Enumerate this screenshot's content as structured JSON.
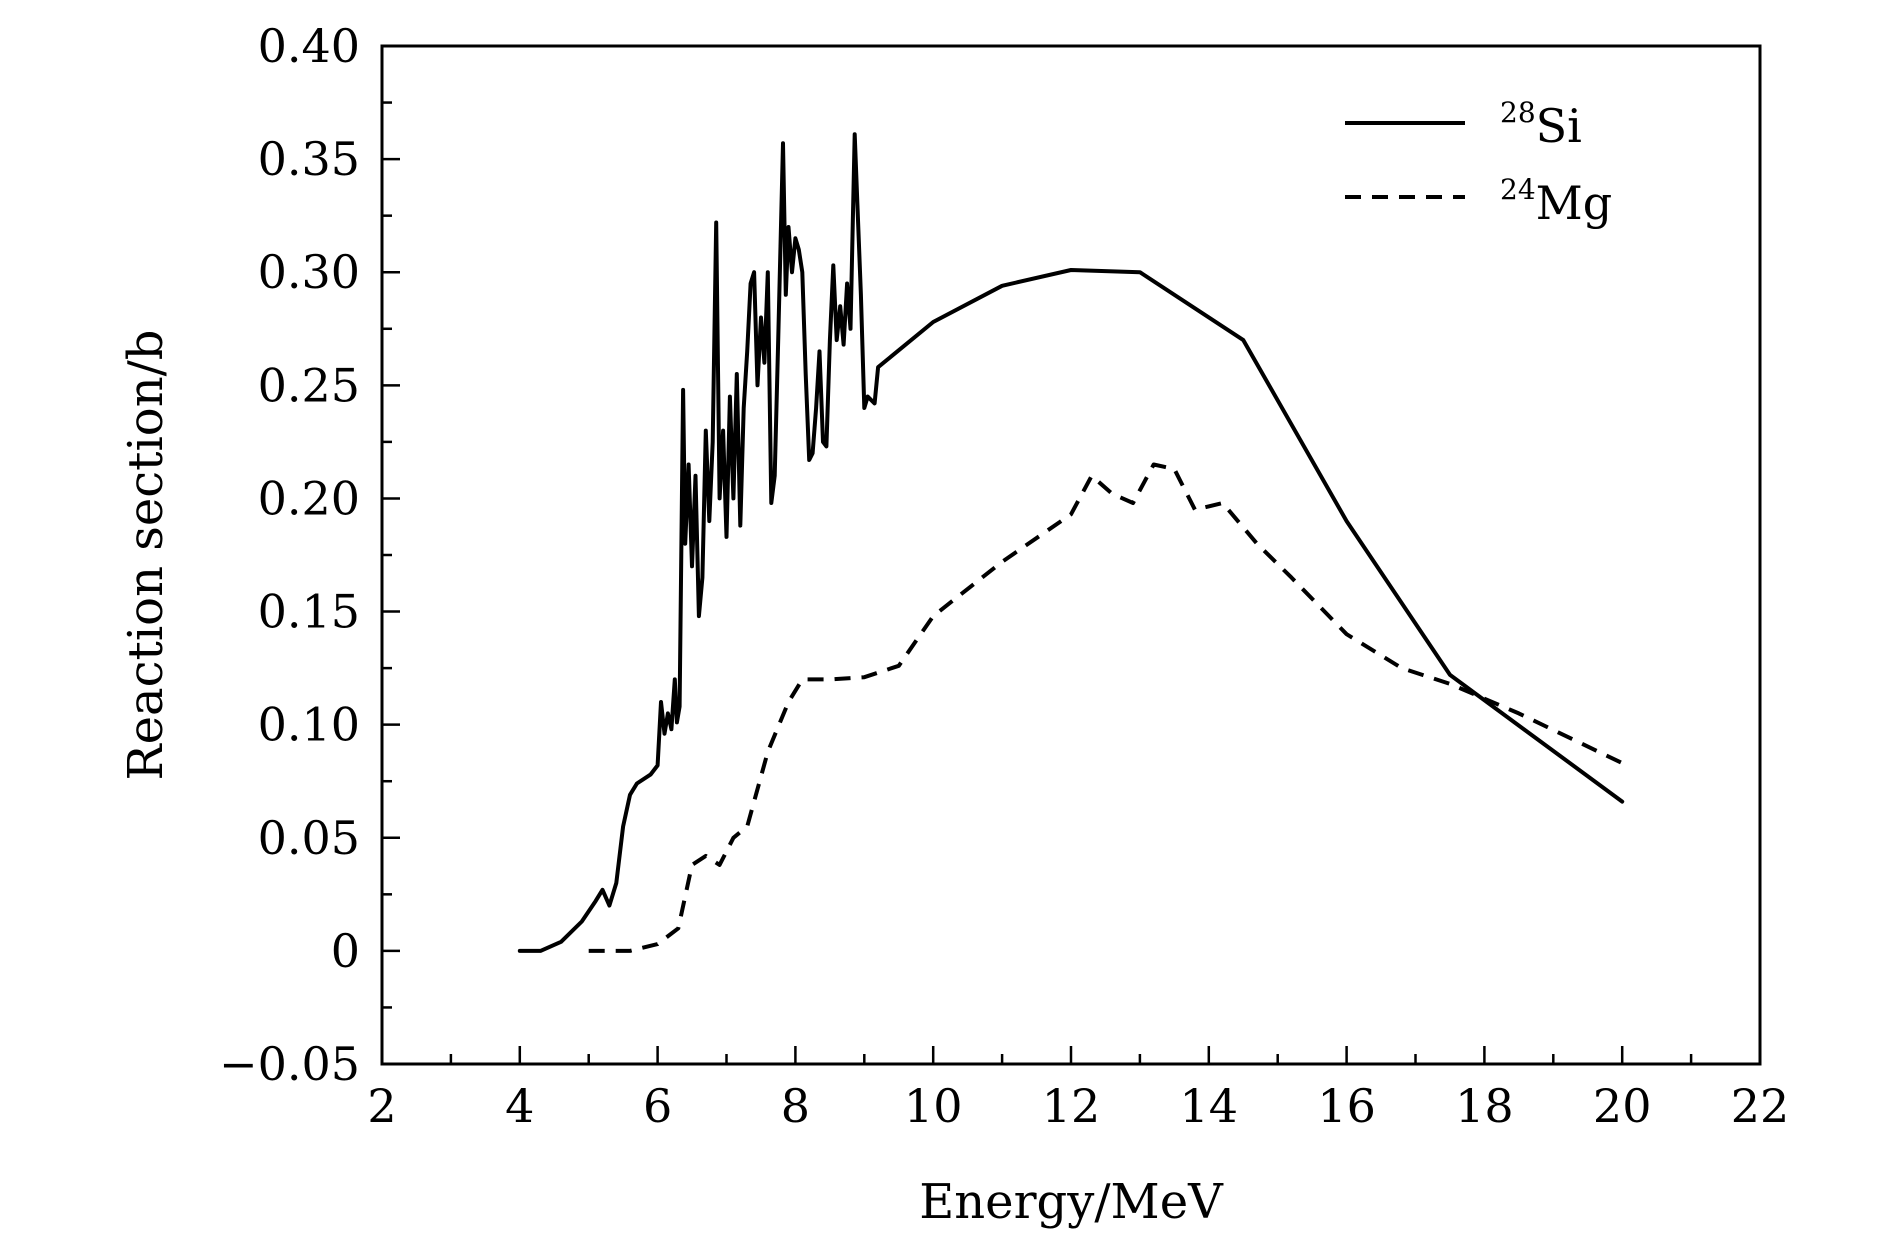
{
  "chart_data": {
    "type": "line",
    "title": "",
    "xlabel": "Energy/MeV",
    "ylabel": "Reaction section/b",
    "xlim": [
      2,
      22
    ],
    "ylim": [
      -0.05,
      0.4
    ],
    "xticks": [
      2,
      4,
      6,
      8,
      10,
      12,
      14,
      16,
      18,
      20,
      22
    ],
    "xtick_labels": [
      "2",
      "4",
      "6",
      "8",
      "10",
      "12",
      "14",
      "16",
      "18",
      "20",
      "22"
    ],
    "yticks": [
      -0.05,
      0,
      0.05,
      0.1,
      0.15,
      0.2,
      0.25,
      0.3,
      0.35,
      0.4
    ],
    "ytick_labels": [
      "−0.05",
      "0",
      "0.05",
      "0.10",
      "0.15",
      "0.20",
      "0.25",
      "0.30",
      "0.35",
      "0.40"
    ],
    "grid": false,
    "legend_position": "top-right",
    "series": [
      {
        "name": "28Si",
        "legend_sup": "28",
        "legend_base": "Si",
        "style": "solid",
        "color": "#000000",
        "points": [
          [
            4.0,
            0.0
          ],
          [
            4.3,
            0.0
          ],
          [
            4.6,
            0.004
          ],
          [
            4.9,
            0.013
          ],
          [
            5.1,
            0.022
          ],
          [
            5.2,
            0.027
          ],
          [
            5.3,
            0.02
          ],
          [
            5.4,
            0.03
          ],
          [
            5.5,
            0.055
          ],
          [
            5.6,
            0.069
          ],
          [
            5.7,
            0.074
          ],
          [
            5.9,
            0.078
          ],
          [
            6.0,
            0.082
          ],
          [
            6.05,
            0.11
          ],
          [
            6.1,
            0.096
          ],
          [
            6.15,
            0.105
          ],
          [
            6.2,
            0.098
          ],
          [
            6.25,
            0.12
          ],
          [
            6.28,
            0.101
          ],
          [
            6.32,
            0.108
          ],
          [
            6.37,
            0.248
          ],
          [
            6.4,
            0.18
          ],
          [
            6.45,
            0.215
          ],
          [
            6.5,
            0.17
          ],
          [
            6.55,
            0.21
          ],
          [
            6.6,
            0.148
          ],
          [
            6.65,
            0.165
          ],
          [
            6.7,
            0.23
          ],
          [
            6.75,
            0.19
          ],
          [
            6.8,
            0.225
          ],
          [
            6.85,
            0.322
          ],
          [
            6.9,
            0.2
          ],
          [
            6.95,
            0.23
          ],
          [
            7.0,
            0.183
          ],
          [
            7.05,
            0.245
          ],
          [
            7.1,
            0.2
          ],
          [
            7.15,
            0.255
          ],
          [
            7.2,
            0.188
          ],
          [
            7.25,
            0.24
          ],
          [
            7.3,
            0.265
          ],
          [
            7.35,
            0.295
          ],
          [
            7.4,
            0.3
          ],
          [
            7.45,
            0.25
          ],
          [
            7.5,
            0.28
          ],
          [
            7.55,
            0.26
          ],
          [
            7.6,
            0.3
          ],
          [
            7.65,
            0.198
          ],
          [
            7.7,
            0.21
          ],
          [
            7.75,
            0.27
          ],
          [
            7.82,
            0.357
          ],
          [
            7.86,
            0.29
          ],
          [
            7.9,
            0.32
          ],
          [
            7.95,
            0.3
          ],
          [
            8.0,
            0.315
          ],
          [
            8.05,
            0.31
          ],
          [
            8.1,
            0.3
          ],
          [
            8.15,
            0.255
          ],
          [
            8.2,
            0.217
          ],
          [
            8.25,
            0.22
          ],
          [
            8.3,
            0.24
          ],
          [
            8.35,
            0.265
          ],
          [
            8.4,
            0.225
          ],
          [
            8.45,
            0.223
          ],
          [
            8.5,
            0.27
          ],
          [
            8.55,
            0.303
          ],
          [
            8.6,
            0.27
          ],
          [
            8.65,
            0.285
          ],
          [
            8.7,
            0.268
          ],
          [
            8.75,
            0.295
          ],
          [
            8.8,
            0.275
          ],
          [
            8.86,
            0.361
          ],
          [
            8.9,
            0.33
          ],
          [
            8.95,
            0.29
          ],
          [
            9.0,
            0.24
          ],
          [
            9.05,
            0.245
          ],
          [
            9.15,
            0.242
          ],
          [
            9.2,
            0.258
          ],
          [
            10.0,
            0.278
          ],
          [
            11.0,
            0.294
          ],
          [
            12.0,
            0.301
          ],
          [
            13.0,
            0.3
          ],
          [
            14.5,
            0.27
          ],
          [
            16.0,
            0.19
          ],
          [
            17.5,
            0.122
          ],
          [
            20.0,
            0.066
          ]
        ]
      },
      {
        "name": "24Mg",
        "legend_sup": "24",
        "legend_base": "Mg",
        "style": "dashed",
        "color": "#000000",
        "points": [
          [
            5.0,
            0.0
          ],
          [
            5.6,
            0.0
          ],
          [
            6.0,
            0.003
          ],
          [
            6.3,
            0.01
          ],
          [
            6.5,
            0.038
          ],
          [
            6.7,
            0.042
          ],
          [
            6.9,
            0.038
          ],
          [
            7.1,
            0.05
          ],
          [
            7.3,
            0.055
          ],
          [
            7.6,
            0.088
          ],
          [
            7.9,
            0.11
          ],
          [
            8.1,
            0.12
          ],
          [
            8.5,
            0.12
          ],
          [
            9.0,
            0.121
          ],
          [
            9.5,
            0.126
          ],
          [
            10.0,
            0.148
          ],
          [
            11.0,
            0.172
          ],
          [
            12.0,
            0.193
          ],
          [
            12.3,
            0.21
          ],
          [
            12.6,
            0.202
          ],
          [
            12.9,
            0.198
          ],
          [
            13.2,
            0.215
          ],
          [
            13.5,
            0.213
          ],
          [
            13.8,
            0.195
          ],
          [
            14.2,
            0.198
          ],
          [
            14.7,
            0.18
          ],
          [
            15.2,
            0.165
          ],
          [
            16.0,
            0.14
          ],
          [
            16.8,
            0.125
          ],
          [
            17.5,
            0.118
          ],
          [
            18.5,
            0.105
          ],
          [
            20.0,
            0.083
          ]
        ]
      }
    ]
  }
}
